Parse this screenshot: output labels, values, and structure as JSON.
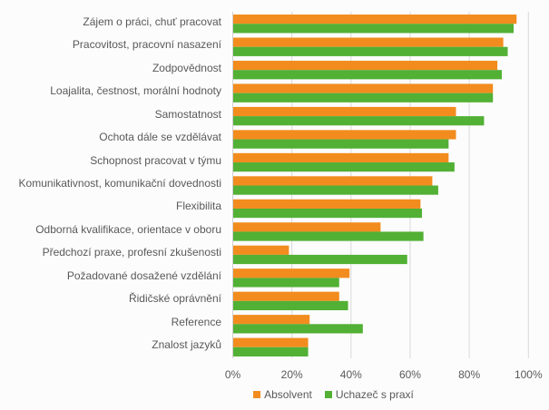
{
  "chart_data": {
    "type": "bar",
    "orientation": "horizontal",
    "title": "",
    "xlabel": "",
    "ylabel": "",
    "xlim": [
      0,
      100
    ],
    "x_ticks": [
      "0%",
      "20%",
      "40%",
      "60%",
      "80%",
      "100%"
    ],
    "grid": true,
    "legend_position": "bottom",
    "categories": [
      "Zájem o práci, chuť pracovat",
      "Pracovitost, pracovní nasazení",
      "Zodpovědnost",
      "Loajalita, čestnost, morální hodnoty",
      "Samostatnost",
      "Ochota dále se vzdělávat",
      "Schopnost pracovat v týmu",
      "Komunikativnost, komunikační dovednosti",
      "Flexibilita",
      "Odborná kvalifikace, orientace v oboru",
      "Předchozí praxe, profesní zkušenosti",
      "Požadované dosažené vzdělání",
      "Řidičské oprávnění",
      "Reference",
      "Znalost jazyků"
    ],
    "series": [
      {
        "name": "Absolvent",
        "color": "#f28c1e",
        "values": [
          96,
          91.5,
          89.5,
          88,
          75.5,
          75.5,
          73,
          67.5,
          63.5,
          50,
          19,
          39.5,
          36,
          26,
          25.5
        ]
      },
      {
        "name": "Uchazeč s praxí",
        "color": "#52b035",
        "values": [
          95,
          93,
          91,
          88,
          85,
          73,
          75,
          69.5,
          64,
          64.5,
          59,
          36,
          39,
          44,
          25.5
        ]
      }
    ]
  }
}
